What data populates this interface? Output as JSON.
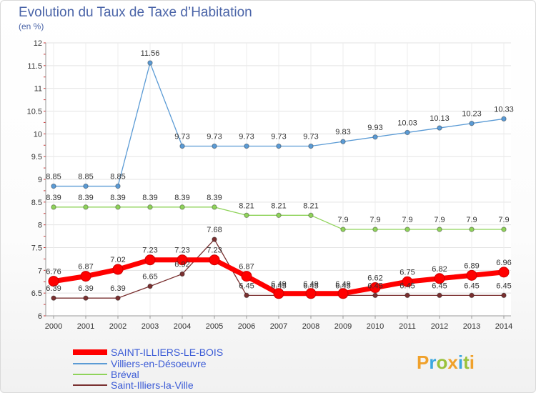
{
  "title": "Evolution du Taux de Taxe d’Habitation",
  "subtitle": "(en %)",
  "logo_text": "Proxiti",
  "chart_data": {
    "type": "line",
    "title": "Evolution du Taux de Taxe d’Habitation",
    "subtitle": "(en %)",
    "xlabel": "",
    "ylabel": "",
    "x": [
      "2000",
      "2001",
      "2002",
      "2003",
      "2004",
      "2005",
      "2006",
      "2007",
      "2008",
      "2009",
      "2010",
      "2011",
      "2012",
      "2013",
      "2014"
    ],
    "yticks": [
      "6",
      "6.5",
      "7",
      "7.5",
      "8",
      "8.5",
      "9",
      "9.5",
      "10",
      "10.5",
      "11",
      "11.5",
      "12"
    ],
    "ylim": [
      6,
      12
    ],
    "grid": true,
    "legend_placement": "bottom-left",
    "series": [
      {
        "name": "SAINT-ILLIERS-LE-BOIS",
        "color": "#ff0000",
        "values": [
          6.76,
          6.87,
          7.02,
          7.23,
          7.23,
          7.23,
          6.87,
          6.49,
          6.49,
          6.49,
          6.62,
          6.75,
          6.82,
          6.89,
          6.96
        ],
        "labels": [
          "6.76",
          "6.87",
          "7.02",
          "7.23",
          "7.23",
          "7.23",
          "6.87",
          "6.49",
          "6.49",
          "6.49",
          "6.62",
          "6.75",
          "6.82",
          "6.89",
          "6.96"
        ]
      },
      {
        "name": "Villiers-en-Désoeuvre",
        "color": "#5b9bd5",
        "values": [
          8.85,
          8.85,
          8.85,
          11.56,
          9.73,
          9.73,
          9.73,
          9.73,
          9.73,
          9.83,
          9.93,
          10.03,
          10.13,
          10.23,
          10.33
        ],
        "labels": [
          "8.85",
          "8.85",
          "8.85",
          "11.56",
          "9.73",
          "9.73",
          "9.73",
          "9.73",
          "9.73",
          "9.83",
          "9.93",
          "10.03",
          "10.13",
          "10.23",
          "10.33"
        ]
      },
      {
        "name": "Bréval",
        "color": "#8fd35a",
        "values": [
          8.39,
          8.39,
          8.39,
          8.39,
          8.39,
          8.39,
          8.21,
          8.21,
          8.21,
          7.9,
          7.9,
          7.9,
          7.9,
          7.9,
          7.9
        ],
        "labels": [
          "8.39",
          "8.39",
          "8.39",
          "8.39",
          "8.39",
          "8.39",
          "8.21",
          "8.21",
          "8.21",
          "7.9",
          "7.9",
          "7.9",
          "7.9",
          "7.9",
          "7.9"
        ]
      },
      {
        "name": "Saint-Illiers-la-Ville",
        "color": "#7a3030",
        "values": [
          6.39,
          6.39,
          6.39,
          6.65,
          6.92,
          7.68,
          6.45,
          6.45,
          6.45,
          6.45,
          6.45,
          6.45,
          6.45,
          6.45,
          6.45
        ],
        "labels": [
          "6.39",
          "6.39",
          "6.39",
          "6.65",
          "6.92",
          "7.68",
          "6.45",
          "6.45",
          "6.45",
          "6.45",
          "6.45",
          "6.45",
          "6.45",
          "6.45",
          "6.45"
        ]
      }
    ]
  }
}
